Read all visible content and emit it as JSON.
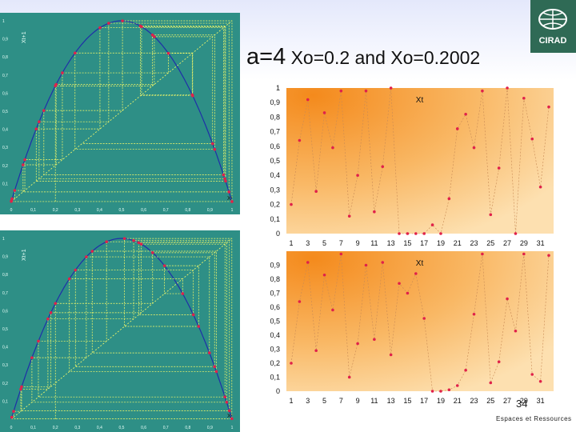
{
  "header": {
    "title_main": "a=4",
    "title_rest": " Xo=0.2 and Xo=0.2002"
  },
  "logo": {
    "text": "CIRAD",
    "icon": "cirad-globe-logo"
  },
  "footer": {
    "text": "Espaces et Ressources",
    "slide_number": "34"
  },
  "colors": {
    "cobweb_bg": "#2e8f86",
    "parabola": "#1f2fa8",
    "cobweb": "#ffff66",
    "point": "#e0214a",
    "plot_bg_light": "#fde0b0",
    "plot_bg_dark": "#f48a1c"
  },
  "chart_data": [
    {
      "type": "scatter",
      "name": "cobweb-top",
      "xlabel": "Xt",
      "ylabel": "Xt+1",
      "xlim": [
        0,
        1
      ],
      "ylim": [
        0,
        1
      ],
      "x_ticks": [
        "0",
        "0,1",
        "0,2",
        "0,3",
        "0,4",
        "0,5",
        "0,6",
        "0,7",
        "0,8",
        "0,9",
        "1"
      ],
      "y_ticks": [
        "0",
        "0,1",
        "0,2",
        "0,3",
        "0,4",
        "0,5",
        "0,6",
        "0,7",
        "0,8",
        "0,9",
        "1"
      ],
      "x0": 0.2,
      "r": 4,
      "iterations": 30
    },
    {
      "type": "line",
      "name": "time-series-top",
      "series_label": "Xt",
      "ylim": [
        0,
        1
      ],
      "y_ticks": [
        "0",
        "0,1",
        "0,2",
        "0,3",
        "0,4",
        "0,5",
        "0,6",
        "0,7",
        "0,8",
        "0,9",
        "1"
      ],
      "x_ticks": [
        "1",
        "3",
        "5",
        "7",
        "9",
        "11",
        "13",
        "15",
        "17",
        "19",
        "21",
        "23",
        "25",
        "27",
        "29",
        "31"
      ],
      "x": [
        1,
        2,
        3,
        4,
        5,
        6,
        7,
        8,
        9,
        10,
        11,
        12,
        13,
        14,
        15,
        16,
        17,
        18,
        19,
        20,
        21,
        22,
        23,
        24,
        25,
        26,
        27,
        28,
        29,
        30,
        31,
        32
      ],
      "values": [
        0.2,
        0.64,
        0.92,
        0.29,
        0.83,
        0.59,
        0.98,
        0.12,
        0.4,
        0.98,
        0.15,
        0.46,
        1.0,
        0.0,
        0.0,
        0.0,
        0.0,
        0.06,
        0.0,
        0.24,
        0.72,
        0.82,
        0.59,
        0.98,
        0.13,
        0.45,
        1.0,
        0.0,
        0.93,
        0.65,
        0.32,
        0.87
      ]
    },
    {
      "type": "scatter",
      "name": "cobweb-bottom",
      "xlabel": "Xt",
      "ylabel": "Xt+1",
      "xlim": [
        0,
        1
      ],
      "ylim": [
        0,
        1
      ],
      "x_ticks": [
        "0",
        "0,1",
        "0,2",
        "0,3",
        "0,4",
        "0,5",
        "0,6",
        "0,7",
        "0,8",
        "0,9",
        "1"
      ],
      "y_ticks": [
        "0",
        "0,1",
        "0,2",
        "0,3",
        "0,4",
        "0,5",
        "0,6",
        "0,7",
        "0,8",
        "0,9",
        "1"
      ],
      "x0": 0.2002,
      "r": 4,
      "iterations": 30
    },
    {
      "type": "line",
      "name": "time-series-bottom",
      "series_label": "Xt",
      "ylim": [
        0,
        1
      ],
      "y_ticks": [
        "0",
        "0,1",
        "0,2",
        "0,3",
        "0,4",
        "0,5",
        "0,6",
        "0,7",
        "0,8",
        "0,9"
      ],
      "x_ticks": [
        "1",
        "3",
        "5",
        "7",
        "9",
        "11",
        "13",
        "15",
        "17",
        "19",
        "21",
        "23",
        "25",
        "27",
        "29",
        "31"
      ],
      "x": [
        1,
        2,
        3,
        4,
        5,
        6,
        7,
        8,
        9,
        10,
        11,
        12,
        13,
        14,
        15,
        16,
        17,
        18,
        19,
        20,
        21,
        22,
        23,
        24,
        25,
        26,
        27,
        28,
        29,
        30,
        31,
        32
      ],
      "values": [
        0.2,
        0.64,
        0.92,
        0.29,
        0.83,
        0.58,
        0.98,
        0.1,
        0.34,
        0.9,
        0.37,
        0.92,
        0.26,
        0.77,
        0.7,
        0.84,
        0.52,
        0.0,
        0.0,
        0.01,
        0.04,
        0.15,
        0.55,
        0.98,
        0.06,
        0.21,
        0.66,
        0.43,
        0.98,
        0.12,
        0.07,
        0.97
      ]
    }
  ]
}
